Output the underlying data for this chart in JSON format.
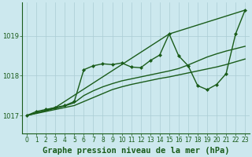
{
  "background_color": "#cce8ee",
  "plot_bg_color": "#cce8ee",
  "grid_color": "#aaccd4",
  "line_color": "#1a5c1a",
  "title": "Graphe pression niveau de la mer (hPa)",
  "xlim": [
    -0.5,
    23.5
  ],
  "ylim": [
    1016.55,
    1019.85
  ],
  "yticks": [
    1017,
    1018,
    1019
  ],
  "xticks": [
    0,
    1,
    2,
    3,
    4,
    5,
    6,
    7,
    8,
    9,
    10,
    11,
    12,
    13,
    14,
    15,
    16,
    17,
    18,
    19,
    20,
    21,
    22,
    23
  ],
  "series": [
    {
      "x": [
        0,
        1,
        2,
        3,
        4,
        5,
        6,
        7,
        8,
        9,
        10,
        11,
        12,
        13,
        14,
        15,
        16,
        17,
        18,
        19,
        20,
        21,
        22,
        23
      ],
      "y": [
        1017.0,
        1017.05,
        1017.1,
        1017.15,
        1017.2,
        1017.25,
        1017.35,
        1017.45,
        1017.55,
        1017.65,
        1017.72,
        1017.78,
        1017.83,
        1017.88,
        1017.93,
        1017.97,
        1018.02,
        1018.07,
        1018.12,
        1018.17,
        1018.22,
        1018.28,
        1018.35,
        1018.42
      ],
      "has_markers": false,
      "linewidth": 1.0
    },
    {
      "x": [
        0,
        1,
        2,
        3,
        4,
        5,
        6,
        7,
        8,
        9,
        10,
        11,
        12,
        13,
        14,
        15,
        16,
        17,
        18,
        19,
        20,
        21,
        22,
        23
      ],
      "y": [
        1017.0,
        1017.06,
        1017.12,
        1017.18,
        1017.24,
        1017.32,
        1017.5,
        1017.62,
        1017.72,
        1017.8,
        1017.87,
        1017.92,
        1017.97,
        1018.02,
        1018.07,
        1018.12,
        1018.18,
        1018.27,
        1018.37,
        1018.47,
        1018.55,
        1018.62,
        1018.68,
        1018.74
      ],
      "has_markers": false,
      "linewidth": 1.0
    },
    {
      "x": [
        0,
        3,
        15,
        23
      ],
      "y": [
        1017.0,
        1017.2,
        1019.05,
        1019.65
      ],
      "has_markers": false,
      "linewidth": 1.0
    },
    {
      "x": [
        0,
        1,
        2,
        3,
        4,
        5,
        6,
        7,
        8,
        9,
        10,
        11,
        12,
        13,
        14,
        15,
        16,
        17,
        18,
        19,
        20,
        21,
        22,
        23
      ],
      "y": [
        1017.0,
        1017.1,
        1017.15,
        1017.2,
        1017.25,
        1017.35,
        1018.15,
        1018.25,
        1018.3,
        1018.28,
        1018.32,
        1018.22,
        1018.2,
        1018.38,
        1018.52,
        1019.05,
        1018.5,
        1018.25,
        1017.75,
        1017.65,
        1017.78,
        1018.05,
        1019.05,
        1019.65
      ],
      "has_markers": true,
      "linewidth": 1.0
    }
  ],
  "title_fontsize": 7.5,
  "tick_fontsize": 5.5
}
